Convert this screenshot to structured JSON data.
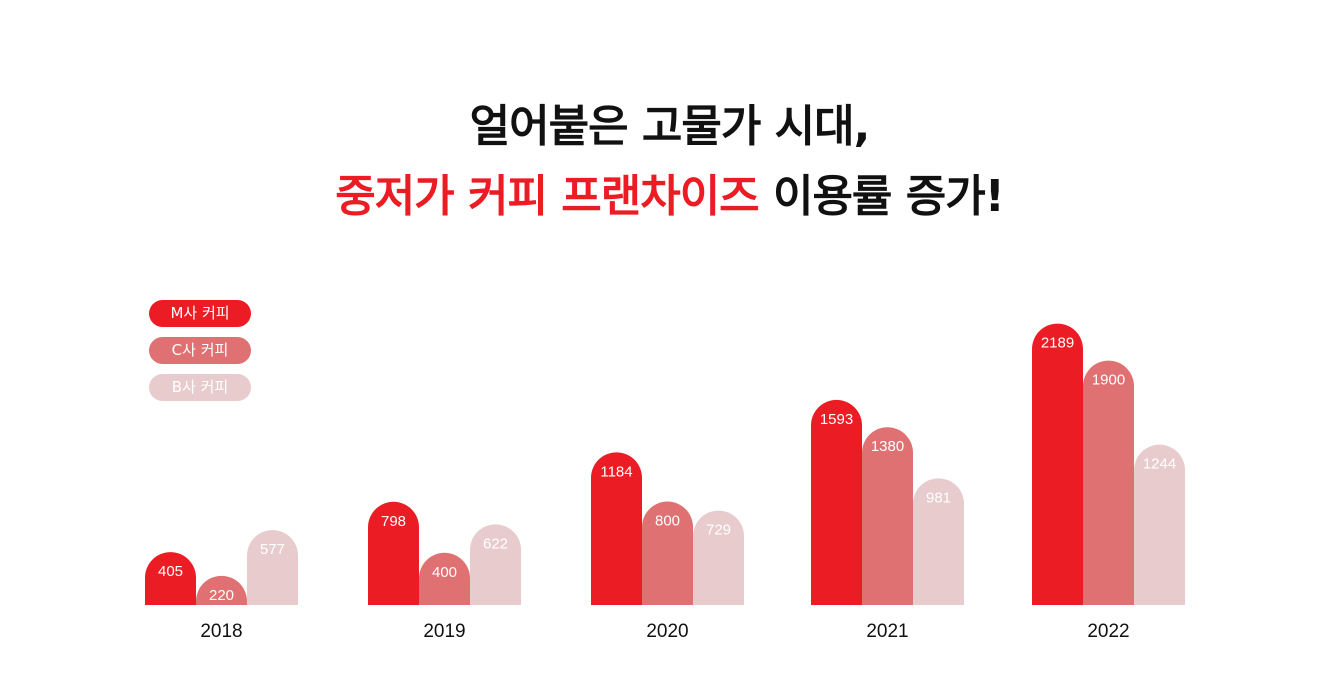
{
  "header": {
    "line1": "얼어붙은 고물가 시대,",
    "line2_accent": "중저가 커피 프랜차이즈",
    "line2_rest": " 이용률 증가!"
  },
  "colors": {
    "accent": "#ec1c24",
    "m": "#ec1c24",
    "c": "#e07172",
    "b": "#e8cbcd",
    "text": "#111111"
  },
  "chart_data": {
    "type": "bar",
    "categories": [
      "2018",
      "2019",
      "2020",
      "2021",
      "2022"
    ],
    "series": [
      {
        "name": "M사 커피",
        "color": "#ec1c24",
        "values": [
          405,
          798,
          1184,
          1593,
          2189
        ]
      },
      {
        "name": "C사 커피",
        "color": "#e07172",
        "values": [
          220,
          400,
          800,
          1380,
          1900
        ]
      },
      {
        "name": "B사 커피",
        "color": "#e8cbcd",
        "values": [
          577,
          622,
          729,
          981,
          1244
        ]
      }
    ],
    "legend_position": "top-left",
    "grid": false
  }
}
